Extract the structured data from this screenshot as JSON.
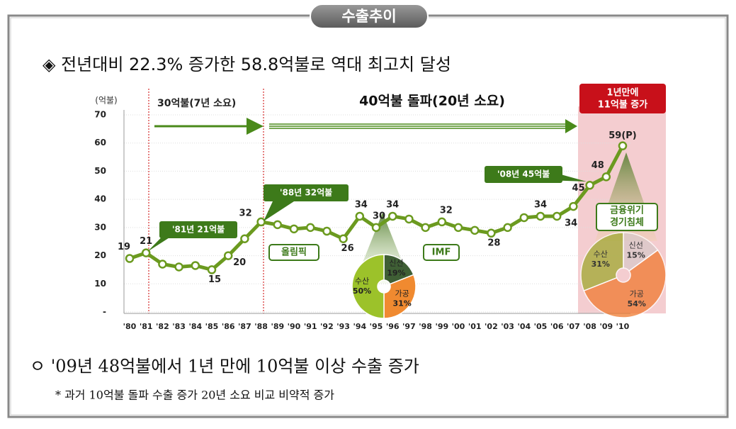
{
  "header": {
    "title": "수출추이"
  },
  "headline": "◈ 전년대비 22.3% 증가한 58.8억불로 역대 최고치 달성",
  "notes": [
    "ㅇ '09년 48억불에서 1년 만에 10억불 이상 수출 증가",
    "* 과거 10억불 돌파 수출 증가 20년 소요 비교 비약적 증가"
  ],
  "chart_data": [
    {
      "type": "line",
      "unit_label": "(억불)",
      "color": "#6b9a1f",
      "categories": [
        "'80",
        "'81",
        "'82",
        "'83",
        "'84",
        "'85",
        "'86",
        "'87",
        "'88",
        "'89",
        "'90",
        "'91",
        "'92",
        "'93",
        "'94",
        "'95",
        "'96",
        "'97",
        "'98",
        "'99",
        "'00",
        "'01",
        "'02",
        "'03",
        "'04",
        "'05",
        "'06",
        "'07",
        "'08",
        "'09",
        "'10"
      ],
      "values": [
        19,
        21,
        17,
        16,
        16.5,
        15,
        20,
        26,
        32,
        31,
        29.5,
        30,
        28.7,
        26,
        34,
        30,
        34,
        33,
        30,
        32,
        30,
        29,
        28,
        30,
        33.5,
        34,
        34,
        37.5,
        45,
        48,
        59
      ],
      "value_labels": [
        "19",
        "21",
        null,
        null,
        null,
        "15",
        "20",
        null,
        "32",
        null,
        null,
        null,
        null,
        "26",
        "34",
        "30",
        "34",
        null,
        null,
        "32",
        null,
        null,
        "28",
        null,
        null,
        "34",
        "34",
        null,
        "45",
        "48",
        "59(P)"
      ],
      "ylim": [
        0,
        70
      ],
      "yticks": [
        {
          "value": 0,
          "label": "-"
        },
        10,
        20,
        30,
        40,
        50,
        60,
        70
      ],
      "periods": [
        "30억불(7년 소요)",
        "40억불 돌파(20년 소요)"
      ],
      "highlight": [
        "1년만에",
        "11억불 증가"
      ],
      "callouts": [
        "'81년 21억불",
        "'88년 32억불",
        "'08년 45억불"
      ],
      "events": [
        "올림픽",
        "IMF"
      ],
      "crisis": [
        "금융위기",
        "경기침체"
      ]
    },
    {
      "type": "pie",
      "categories": [
        "신선",
        "가공",
        "수산"
      ],
      "values": [
        19,
        31,
        50
      ],
      "value_labels": [
        "19%",
        "31%",
        "50%"
      ],
      "colors": [
        "#3f5f35",
        "#f08a30",
        "#9cc22a"
      ]
    },
    {
      "type": "pie",
      "categories": [
        "신선",
        "가공",
        "수산"
      ],
      "values": [
        15,
        54,
        31
      ],
      "value_labels": [
        "15%",
        "54%",
        "31%"
      ],
      "colors": [
        "#d8c8c8",
        "#f07a30",
        "#a0a830"
      ]
    }
  ]
}
